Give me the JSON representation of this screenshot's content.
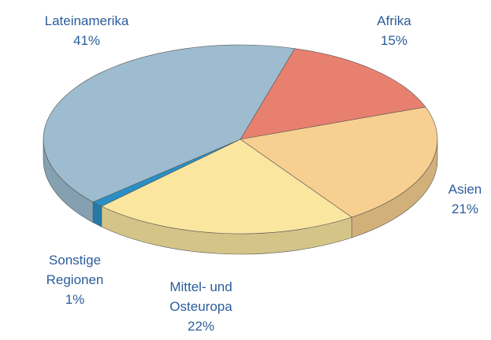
{
  "chart_data": {
    "type": "pie",
    "categories": [
      "Afrika",
      "Asien",
      "Mittel- und Osteuropa",
      "Sonstige Regionen",
      "Lateinamerika"
    ],
    "values": [
      15,
      21,
      22,
      1,
      41
    ],
    "value_labels": [
      "15%",
      "21%",
      "22%",
      "1%",
      "41%"
    ],
    "colors": [
      "#e8806f",
      "#f7cf90",
      "#fbe6a0",
      "#2a8fc4",
      "#9dbccf"
    ],
    "three_d": true
  }
}
